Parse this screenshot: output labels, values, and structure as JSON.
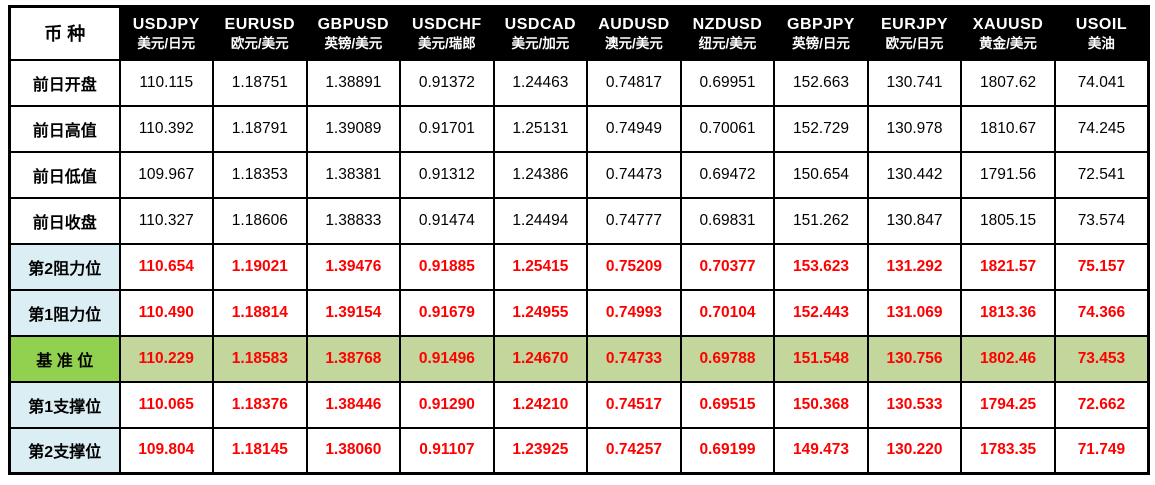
{
  "table": {
    "corner_label": "币 种",
    "columns": [
      {
        "symbol": "USDJPY",
        "name": "美元/日元"
      },
      {
        "symbol": "EURUSD",
        "name": "欧元/美元"
      },
      {
        "symbol": "GBPUSD",
        "name": "英镑/美元"
      },
      {
        "symbol": "USDCHF",
        "name": "美元/瑞郎"
      },
      {
        "symbol": "USDCAD",
        "name": "美元/加元"
      },
      {
        "symbol": "AUDUSD",
        "name": "澳元/美元"
      },
      {
        "symbol": "NZDUSD",
        "name": "纽元/美元"
      },
      {
        "symbol": "GBPJPY",
        "name": "英镑/日元"
      },
      {
        "symbol": "EURJPY",
        "name": "欧元/日元"
      },
      {
        "symbol": "XAUUSD",
        "name": "黄金/美元"
      },
      {
        "symbol": "USOIL",
        "name": "美油"
      }
    ],
    "rows": [
      {
        "label": "前日开盘",
        "style": "plain",
        "values": [
          "110.115",
          "1.18751",
          "1.38891",
          "0.91372",
          "1.24463",
          "0.74817",
          "0.69951",
          "152.663",
          "130.741",
          "1807.62",
          "74.041"
        ]
      },
      {
        "label": "前日高值",
        "style": "plain",
        "values": [
          "110.392",
          "1.18791",
          "1.39089",
          "0.91701",
          "1.25131",
          "0.74949",
          "0.70061",
          "152.729",
          "130.978",
          "1810.67",
          "74.245"
        ]
      },
      {
        "label": "前日低值",
        "style": "plain",
        "values": [
          "109.967",
          "1.18353",
          "1.38381",
          "0.91312",
          "1.24386",
          "0.74473",
          "0.69472",
          "150.654",
          "130.442",
          "1791.56",
          "72.541"
        ]
      },
      {
        "label": "前日收盘",
        "style": "plain",
        "values": [
          "110.327",
          "1.18606",
          "1.38833",
          "0.91474",
          "1.24494",
          "0.74777",
          "0.69831",
          "151.262",
          "130.847",
          "1805.15",
          "73.574"
        ]
      },
      {
        "label": "第2阻力位",
        "style": "level",
        "values": [
          "110.654",
          "1.19021",
          "1.39476",
          "0.91885",
          "1.25415",
          "0.75209",
          "0.70377",
          "153.623",
          "131.292",
          "1821.57",
          "75.157"
        ]
      },
      {
        "label": "第1阻力位",
        "style": "level",
        "values": [
          "110.490",
          "1.18814",
          "1.39154",
          "0.91679",
          "1.24955",
          "0.74993",
          "0.70104",
          "152.443",
          "131.069",
          "1813.36",
          "74.366"
        ]
      },
      {
        "label": "基 准 位",
        "style": "pivot",
        "values": [
          "110.229",
          "1.18583",
          "1.38768",
          "0.91496",
          "1.24670",
          "0.74733",
          "0.69788",
          "151.548",
          "130.756",
          "1802.46",
          "73.453"
        ]
      },
      {
        "label": "第1支撑位",
        "style": "level",
        "values": [
          "110.065",
          "1.18376",
          "1.38446",
          "0.91290",
          "1.24210",
          "0.74517",
          "0.69515",
          "150.368",
          "130.533",
          "1794.25",
          "72.662"
        ]
      },
      {
        "label": "第2支撑位",
        "style": "level",
        "values": [
          "109.804",
          "1.18145",
          "1.38060",
          "0.91107",
          "1.23925",
          "0.74257",
          "0.69199",
          "149.473",
          "130.220",
          "1783.35",
          "71.749"
        ]
      }
    ],
    "colors": {
      "header_bg": "#000000",
      "header_text": "#ffffff",
      "level_label_bg": "#daeef3",
      "pivot_label_bg": "#92d050",
      "pivot_value_bg": "#c3d69b",
      "value_red": "#ff0000",
      "border": "#000000",
      "page_bg": "#ffffff"
    }
  }
}
